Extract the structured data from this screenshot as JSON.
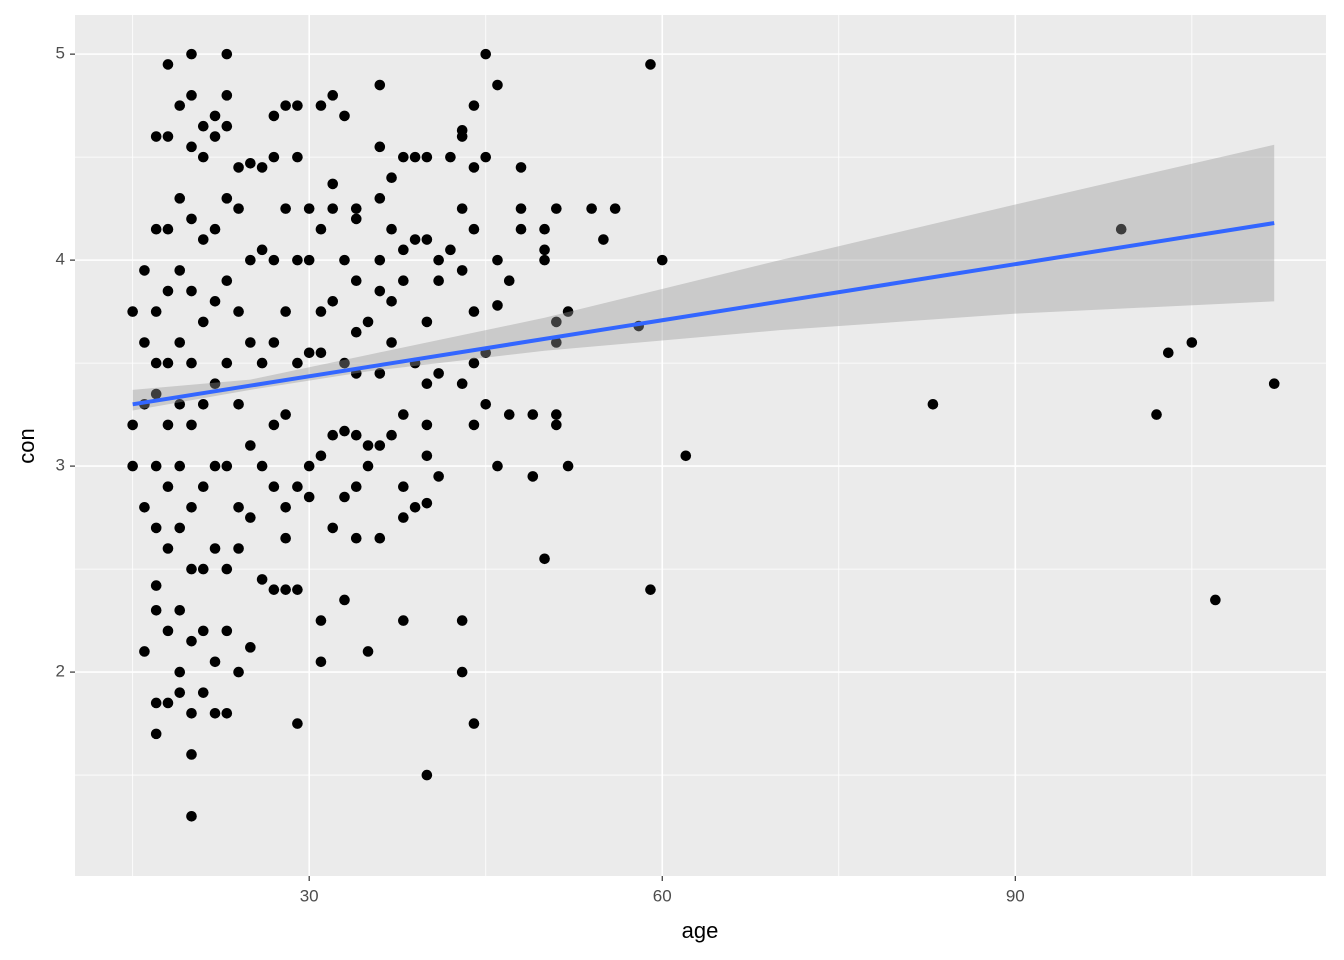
{
  "chart_data": {
    "type": "scatter",
    "x_label": "age",
    "y_label": "con",
    "xlim": [
      10.1,
      116.4
    ],
    "ylim": [
      1.01,
      5.19
    ],
    "xticks": [
      30,
      60,
      90
    ],
    "yticks": [
      2,
      3,
      4,
      5
    ],
    "xminor": [
      15,
      45,
      75,
      105
    ],
    "yminor": [
      1.5,
      2.5,
      3.5,
      4.5
    ],
    "grid": true,
    "point_color": "#000000",
    "x": [
      99,
      83,
      102,
      103,
      105,
      107,
      112,
      62,
      60,
      59,
      59,
      58,
      56,
      55,
      54,
      52,
      52,
      51,
      51,
      51,
      51,
      51,
      50,
      50,
      50,
      50,
      49,
      49,
      48,
      48,
      48,
      47,
      47,
      46,
      46,
      46,
      46,
      45,
      45,
      45,
      45,
      44,
      44,
      44,
      44,
      44,
      44,
      44,
      43,
      43,
      43,
      43,
      43,
      43,
      43,
      42,
      42,
      41,
      41,
      41,
      41,
      40,
      40,
      40,
      40,
      40,
      40,
      40,
      40,
      39,
      39,
      39,
      39,
      38,
      38,
      38,
      38,
      38,
      38,
      38,
      37,
      37,
      37,
      37,
      37,
      36,
      36,
      36,
      36,
      36,
      36,
      36,
      36,
      35,
      35,
      35,
      35,
      34,
      34,
      34,
      34,
      34,
      34,
      34,
      34,
      33,
      33,
      33,
      33,
      33,
      33,
      32,
      32,
      32,
      32,
      32,
      32,
      31,
      31,
      31,
      31,
      31,
      31,
      31,
      30,
      30,
      30,
      30,
      30,
      29,
      29,
      29,
      29,
      29,
      29,
      29,
      28,
      28,
      28,
      28,
      28,
      28,
      28,
      27,
      27,
      27,
      27,
      27,
      27,
      27,
      26,
      26,
      26,
      26,
      26,
      25,
      25,
      25,
      25,
      25,
      25,
      24,
      24,
      24,
      24,
      24,
      24,
      24,
      23,
      23,
      23,
      23,
      23,
      23,
      23,
      23,
      23,
      23,
      22,
      22,
      22,
      22,
      22,
      22,
      22,
      22,
      22,
      21,
      21,
      21,
      21,
      21,
      21,
      21,
      21,
      21,
      20,
      20,
      20,
      20,
      20,
      20,
      20,
      20,
      20,
      20,
      20,
      20,
      20,
      19,
      19,
      19,
      19,
      19,
      19,
      19,
      19,
      19,
      19,
      18,
      18,
      18,
      18,
      18,
      18,
      18,
      18,
      18,
      18,
      17,
      17,
      17,
      17,
      17,
      17,
      17,
      17,
      17,
      17,
      17,
      16,
      16,
      16,
      16,
      16,
      15,
      15,
      15
    ],
    "y": [
      4.15,
      3.3,
      3.25,
      3.55,
      3.6,
      2.35,
      3.4,
      3.05,
      4.0,
      2.4,
      4.95,
      3.68,
      4.25,
      4.1,
      4.25,
      3.75,
      3.0,
      4.25,
      3.7,
      3.6,
      3.25,
      3.2,
      2.55,
      4.0,
      4.05,
      4.15,
      2.95,
      3.25,
      4.25,
      4.15,
      4.45,
      3.25,
      3.9,
      4.85,
      4.0,
      3.78,
      3.0,
      5.0,
      4.5,
      3.3,
      3.55,
      4.75,
      4.45,
      4.15,
      3.75,
      3.5,
      3.2,
      1.75,
      4.6,
      4.63,
      4.25,
      3.95,
      3.4,
      2.25,
      2.0,
      4.05,
      4.5,
      4.0,
      3.9,
      3.45,
      2.95,
      4.5,
      4.1,
      3.7,
      3.4,
      3.2,
      3.05,
      2.82,
      1.5,
      4.5,
      4.1,
      3.5,
      2.8,
      4.5,
      4.05,
      3.9,
      3.25,
      2.9,
      2.75,
      2.25,
      4.4,
      4.15,
      3.8,
      3.6,
      3.15,
      4.85,
      4.55,
      4.3,
      4.0,
      3.85,
      3.45,
      3.1,
      2.65,
      3.7,
      3.1,
      3.0,
      2.1,
      4.25,
      4.2,
      3.9,
      3.65,
      3.45,
      3.15,
      2.9,
      2.65,
      4.7,
      4.0,
      3.5,
      3.17,
      2.85,
      2.35,
      4.8,
      4.37,
      4.25,
      3.8,
      3.15,
      2.7,
      4.75,
      4.15,
      3.75,
      3.55,
      3.05,
      2.25,
      2.05,
      4.25,
      4.0,
      3.55,
      3.0,
      2.85,
      4.75,
      4.5,
      4.0,
      3.5,
      2.9,
      2.4,
      1.75,
      4.75,
      4.25,
      3.75,
      3.25,
      2.8,
      2.65,
      2.4,
      4.7,
      4.5,
      4.0,
      3.6,
      3.2,
      2.9,
      2.4,
      4.45,
      4.05,
      3.5,
      3.0,
      2.45,
      4.47,
      4.0,
      3.6,
      3.1,
      2.75,
      2.12,
      4.45,
      4.25,
      3.75,
      3.3,
      2.8,
      2.6,
      2.0,
      5.0,
      4.8,
      4.65,
      4.3,
      3.9,
      3.5,
      3.0,
      2.5,
      2.2,
      1.8,
      4.7,
      4.6,
      4.15,
      3.8,
      3.4,
      3.0,
      2.6,
      2.05,
      1.8,
      4.65,
      4.5,
      4.1,
      3.7,
      3.3,
      2.9,
      2.5,
      2.2,
      1.9,
      5.0,
      4.8,
      4.55,
      4.2,
      3.85,
      3.5,
      3.2,
      2.8,
      2.5,
      2.15,
      1.8,
      1.6,
      1.3,
      4.75,
      4.3,
      3.95,
      3.6,
      3.3,
      3.0,
      2.7,
      2.3,
      2.0,
      1.9,
      4.95,
      4.6,
      4.15,
      3.85,
      3.5,
      3.2,
      2.9,
      2.6,
      2.2,
      1.85,
      4.6,
      4.15,
      3.75,
      3.5,
      3.35,
      3.0,
      2.7,
      2.42,
      2.3,
      1.85,
      1.7,
      3.95,
      3.6,
      3.3,
      2.8,
      2.1,
      3.75,
      3.2,
      3.0
    ],
    "fit": {
      "color": "#3366ff",
      "x": [
        15,
        112
      ],
      "y": [
        3.3,
        4.18
      ]
    },
    "band": {
      "color": "#999999",
      "x": [
        15,
        25,
        35,
        50,
        70,
        90,
        112
      ],
      "lower": [
        3.27,
        3.37,
        3.46,
        3.56,
        3.66,
        3.74,
        3.8
      ],
      "upper": [
        3.37,
        3.42,
        3.54,
        3.72,
        4.0,
        4.27,
        4.56
      ]
    }
  }
}
